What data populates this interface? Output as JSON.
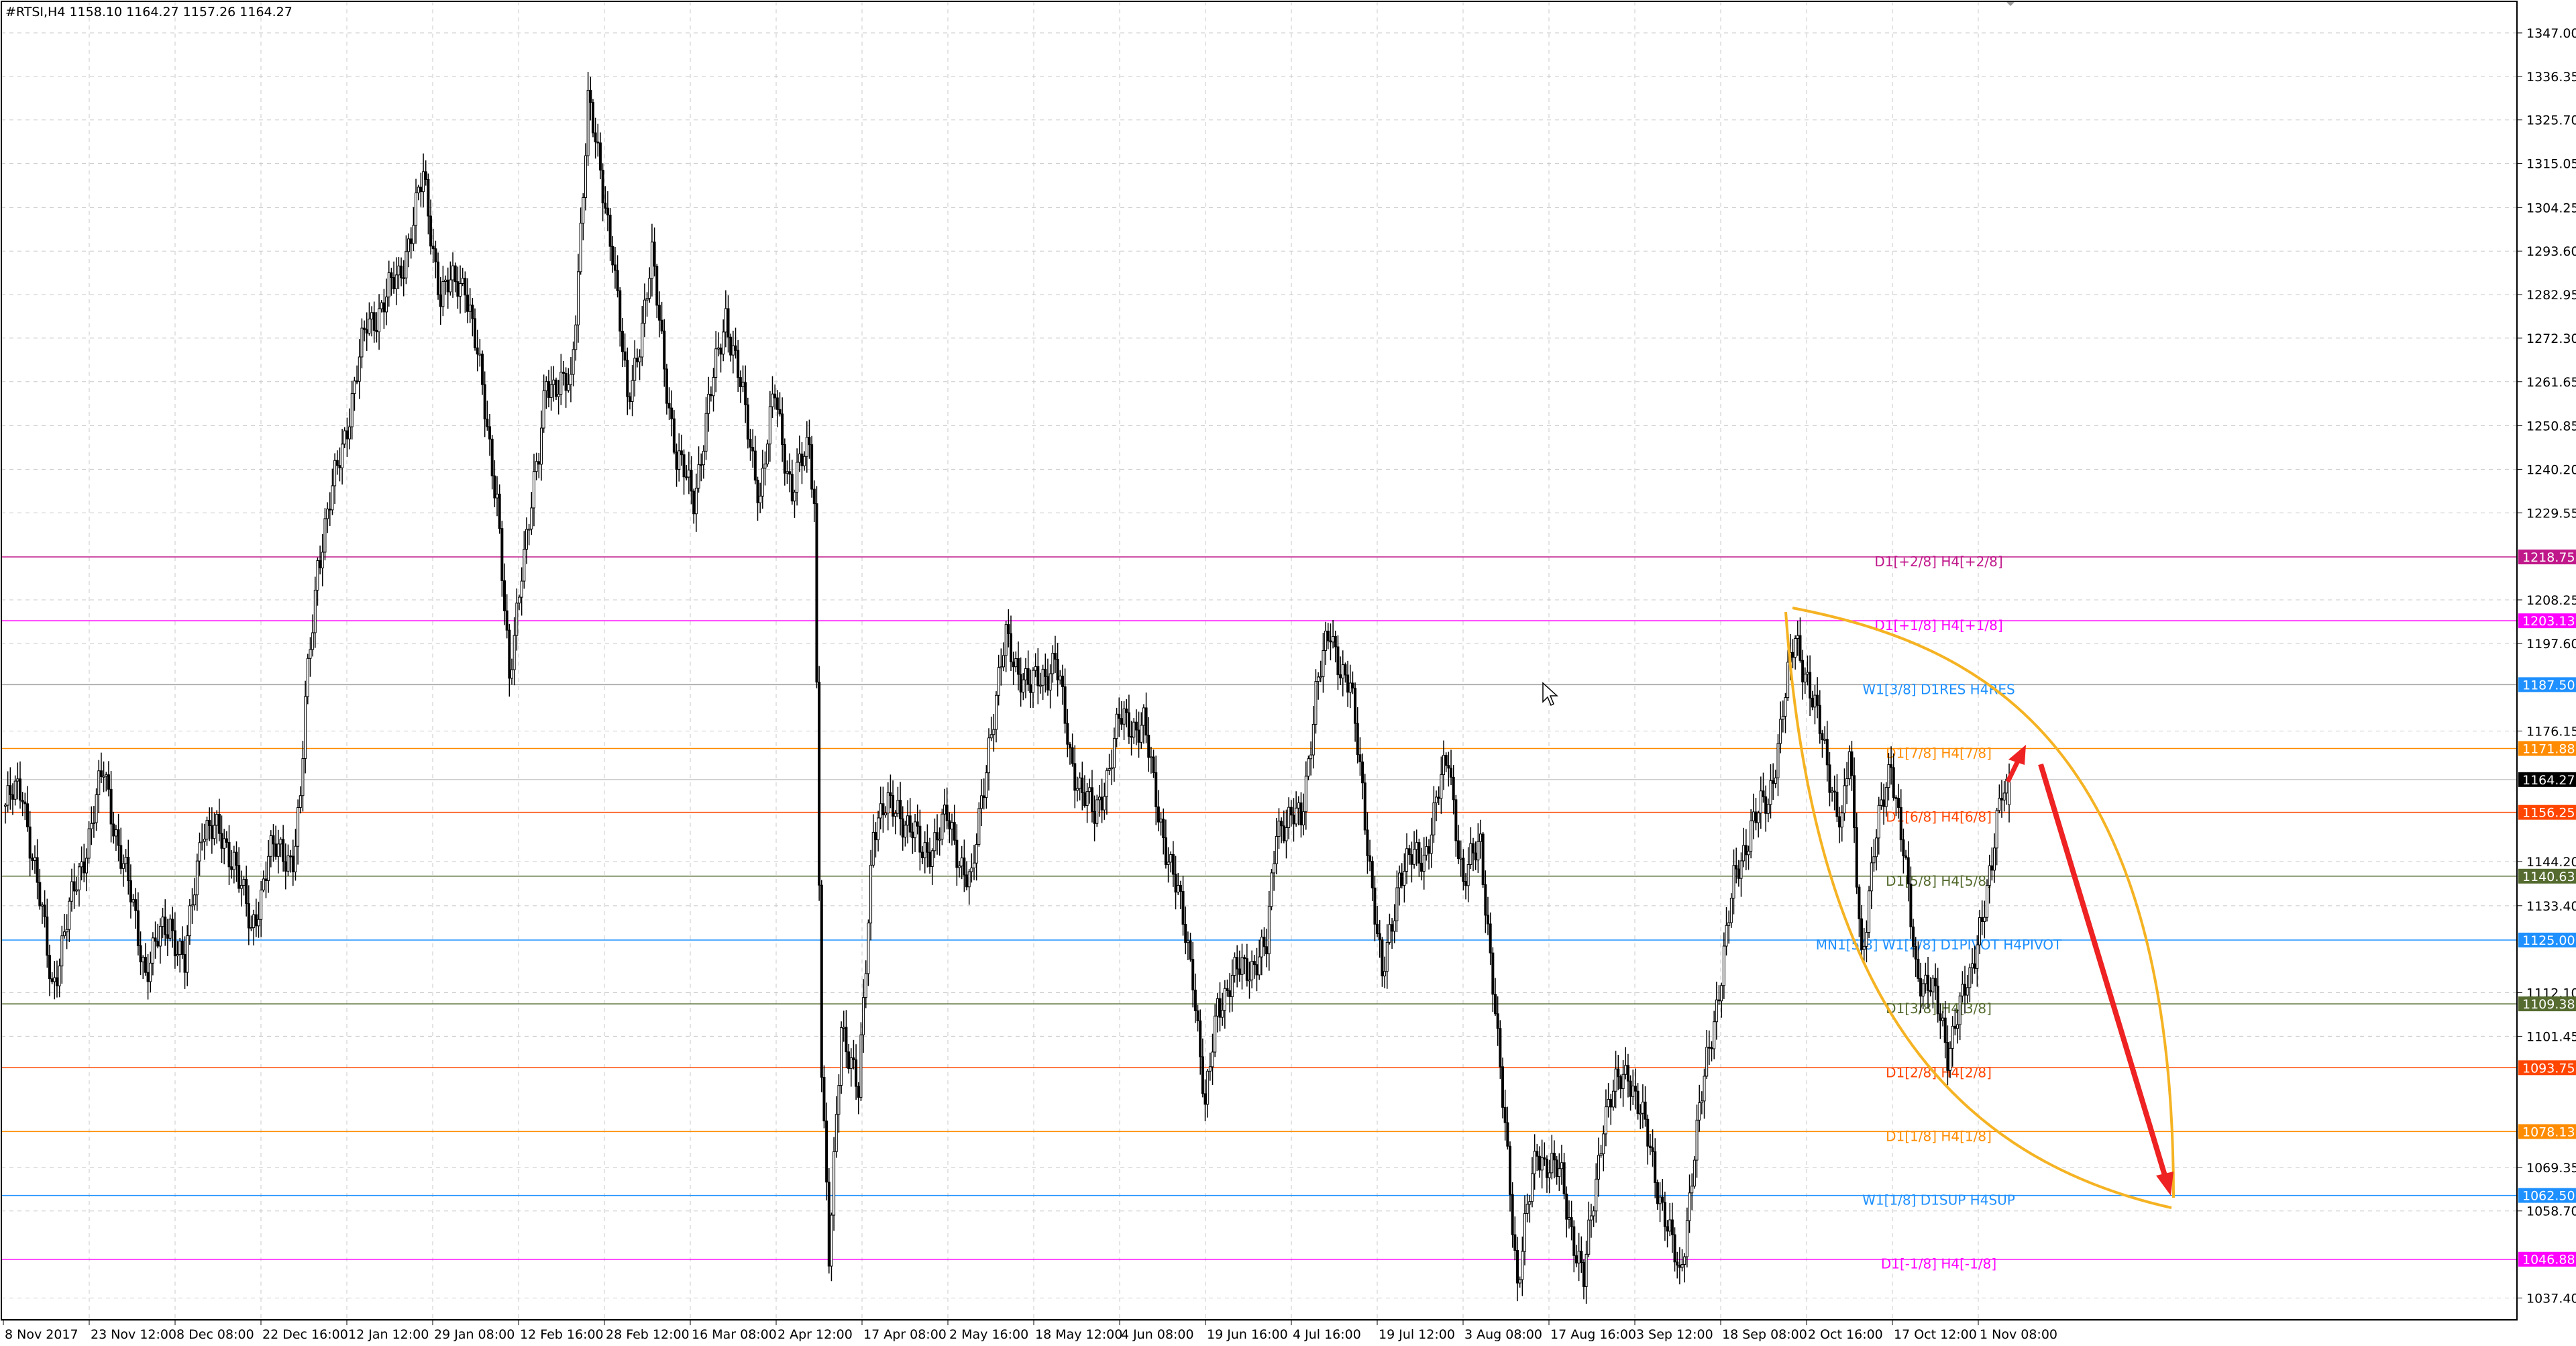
{
  "window": {
    "title": "#RTSI,H4  1158.10 1164.27 1157.26 1164.27"
  },
  "chart_data": {
    "type": "candlestick",
    "symbol": "#RTSI",
    "timeframe": "H4",
    "ohlc_last": {
      "open": 1158.1,
      "high": 1164.27,
      "low": 1157.26,
      "close": 1164.27
    },
    "ylim": [
      1032,
      1352
    ],
    "y_ticks": [
      "1347.00",
      "1336.35",
      "1325.70",
      "1315.05",
      "1304.25",
      "1293.60",
      "1282.95",
      "1272.30",
      "1261.65",
      "1250.85",
      "1240.20",
      "1229.55",
      "1208.25",
      "1197.60",
      "1176.15",
      "1144.20",
      "1133.40",
      "1112.10",
      "1101.45",
      "1069.35",
      "1058.70",
      "1037.40"
    ],
    "x_ticks": [
      "8 Nov 2017",
      "23 Nov 12:00",
      "8 Dec 08:00",
      "22 Dec 16:00",
      "12 Jan 12:00",
      "29 Jan 08:00",
      "12 Feb 16:00",
      "28 Feb 12:00",
      "16 Mar 08:00",
      "2 Apr 12:00",
      "17 Apr 08:00",
      "2 May 16:00",
      "18 May 12:00",
      "4 Jun 08:00",
      "19 Jun 16:00",
      "4 Jul 16:00",
      "19 Jul 12:00",
      "3 Aug 08:00",
      "17 Aug 16:00",
      "3 Sep 12:00",
      "18 Sep 08:00",
      "2 Oct 16:00",
      "17 Oct 12:00",
      "1 Nov 08:00"
    ],
    "price_path": [
      [
        0,
        1158
      ],
      [
        7,
        1162
      ],
      [
        19,
        1114
      ],
      [
        27,
        1134
      ],
      [
        40,
        1166
      ],
      [
        47,
        1146
      ],
      [
        57,
        1118
      ],
      [
        67,
        1130
      ],
      [
        73,
        1118
      ],
      [
        80,
        1154
      ],
      [
        93,
        1146
      ],
      [
        100,
        1126
      ],
      [
        107,
        1146
      ],
      [
        117,
        1146
      ],
      [
        120,
        1158
      ],
      [
        122,
        1182
      ],
      [
        127,
        1218
      ],
      [
        133,
        1234
      ],
      [
        140,
        1255
      ],
      [
        147,
        1275
      ],
      [
        160,
        1287
      ],
      [
        170,
        1311
      ],
      [
        177,
        1283
      ],
      [
        187,
        1287
      ],
      [
        193,
        1263
      ],
      [
        200,
        1234
      ],
      [
        205,
        1186
      ],
      [
        210,
        1218
      ],
      [
        217,
        1242
      ],
      [
        220,
        1263
      ],
      [
        230,
        1259
      ],
      [
        237,
        1331
      ],
      [
        241,
        1315
      ],
      [
        247,
        1295
      ],
      [
        253,
        1255
      ],
      [
        263,
        1291
      ],
      [
        273,
        1242
      ],
      [
        280,
        1234
      ],
      [
        293,
        1279
      ],
      [
        307,
        1234
      ],
      [
        313,
        1259
      ],
      [
        320,
        1234
      ],
      [
        327,
        1247
      ],
      [
        329,
        1234
      ],
      [
        332,
        1094
      ],
      [
        335,
        1045
      ],
      [
        340,
        1106
      ],
      [
        347,
        1086
      ],
      [
        353,
        1154
      ],
      [
        363,
        1158
      ],
      [
        373,
        1146
      ],
      [
        383,
        1154
      ],
      [
        393,
        1138
      ],
      [
        400,
        1174
      ],
      [
        407,
        1198
      ],
      [
        417,
        1186
      ],
      [
        427,
        1194
      ],
      [
        433,
        1170
      ],
      [
        443,
        1154
      ],
      [
        453,
        1178
      ],
      [
        463,
        1178
      ],
      [
        467,
        1162
      ],
      [
        473,
        1146
      ],
      [
        483,
        1118
      ],
      [
        488,
        1082
      ],
      [
        493,
        1110
      ],
      [
        503,
        1118
      ],
      [
        513,
        1122
      ],
      [
        517,
        1154
      ],
      [
        527,
        1154
      ],
      [
        533,
        1186
      ],
      [
        539,
        1200
      ],
      [
        547,
        1186
      ],
      [
        552,
        1162
      ],
      [
        560,
        1114
      ],
      [
        567,
        1142
      ],
      [
        577,
        1146
      ],
      [
        587,
        1170
      ],
      [
        593,
        1138
      ],
      [
        600,
        1150
      ],
      [
        605,
        1114
      ],
      [
        607,
        1098
      ],
      [
        612,
        1066
      ],
      [
        615,
        1041
      ],
      [
        623,
        1074
      ],
      [
        633,
        1066
      ],
      [
        642,
        1041
      ],
      [
        650,
        1082
      ],
      [
        660,
        1094
      ],
      [
        667,
        1078
      ],
      [
        675,
        1058
      ],
      [
        681,
        1041
      ],
      [
        687,
        1074
      ],
      [
        693,
        1098
      ],
      [
        703,
        1138
      ],
      [
        710,
        1154
      ],
      [
        717,
        1158
      ],
      [
        723,
        1182
      ],
      [
        728,
        1198
      ],
      [
        733,
        1190
      ],
      [
        740,
        1170
      ],
      [
        747,
        1154
      ],
      [
        750,
        1170
      ],
      [
        755,
        1122
      ],
      [
        760,
        1146
      ],
      [
        767,
        1170
      ],
      [
        772,
        1146
      ],
      [
        777,
        1118
      ],
      [
        783,
        1114
      ],
      [
        790,
        1098
      ],
      [
        793,
        1106
      ],
      [
        799,
        1114
      ],
      [
        803,
        1130
      ],
      [
        808,
        1142
      ],
      [
        812,
        1162
      ],
      [
        815,
        1164.27
      ]
    ],
    "levels": [
      {
        "price": 1218.75,
        "tag": "1218.75",
        "label": "D1[+2/8] H4[+2/8]",
        "color": "#c0188a"
      },
      {
        "price": 1203.13,
        "tag": "1203.13",
        "label": "D1[+1/8] H4[+1/8]",
        "color": "#ff00ff"
      },
      {
        "price": 1187.5,
        "tag": "1187.50",
        "label": "W1[3/8] D1RES H4RES",
        "color": "#1e90ff",
        "line_color": "#a0a0a0"
      },
      {
        "price": 1171.88,
        "tag": "1171.88",
        "label": "D1[7/8] H4[7/8]",
        "color": "#ff8c00"
      },
      {
        "price": 1156.25,
        "tag": "1156.25",
        "label": "D1[6/8] H4[6/8]",
        "color": "#ff4500"
      },
      {
        "price": 1140.63,
        "tag": "1140.63",
        "label": "D1[5/8] H4[5/8]",
        "color": "#556b2f"
      },
      {
        "price": 1125.0,
        "tag": "1125.00",
        "label": "MN1[5/8] W1[2/8] D1PIVOT H4PIVOT",
        "color": "#1e90ff"
      },
      {
        "price": 1109.38,
        "tag": "1109.38",
        "label": "D1[3/8] H4[3/8]",
        "color": "#556b2f"
      },
      {
        "price": 1093.75,
        "tag": "1093.75",
        "label": "D1[2/8] H4[2/8]",
        "color": "#ff4500"
      },
      {
        "price": 1078.13,
        "tag": "1078.13",
        "label": "D1[1/8] H4[1/8]",
        "color": "#ff8c00"
      },
      {
        "price": 1062.5,
        "tag": "1062.50",
        "label": "W1[1/8] D1SUP H4SUP",
        "color": "#1e90ff"
      },
      {
        "price": 1046.88,
        "tag": "1046.88",
        "label": "D1[-1/8] H4[-1/8]",
        "color": "#ff00ff"
      }
    ],
    "current_price": {
      "value": 1164.27,
      "tag": "1164.27",
      "color": "#000000"
    },
    "drawings": {
      "arc_color": "#f5b323",
      "arrow_color": "#ee2222"
    },
    "grid": true
  }
}
